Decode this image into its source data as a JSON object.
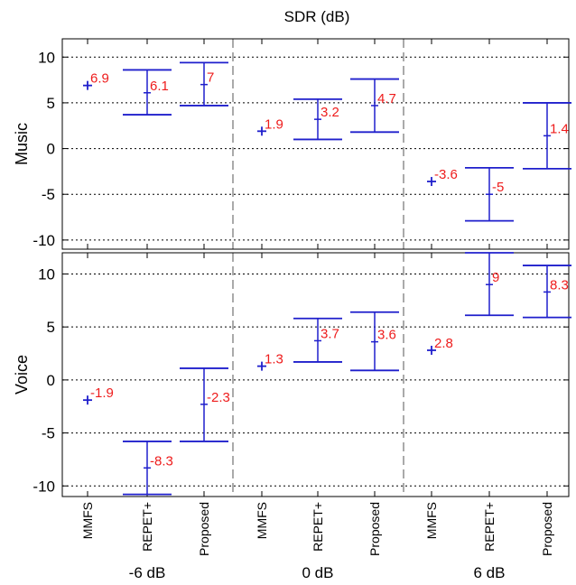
{
  "chart_data": {
    "type": "errorbar",
    "title": "SDR (dB)",
    "groups": [
      "-6 dB",
      "0 dB",
      "6 dB"
    ],
    "methods": [
      "MMFS",
      "REPET+",
      "Proposed"
    ],
    "yticks": [
      -10,
      -5,
      0,
      5,
      10
    ],
    "grid": "horizontal dotted",
    "colors": {
      "marker": "#1f1fcc",
      "label": "#ee1c1c",
      "axis": "#000000"
    },
    "panels": [
      {
        "ylabel": "Music",
        "ylim": [
          -11,
          12
        ],
        "points": [
          {
            "group": "-6 dB",
            "method": "MMFS",
            "mean": 6.9,
            "label": "6.9"
          },
          {
            "group": "-6 dB",
            "method": "REPET+",
            "mean": 6.1,
            "low": 3.7,
            "high": 8.6,
            "label": "6.1"
          },
          {
            "group": "-6 dB",
            "method": "Proposed",
            "mean": 7,
            "low": 4.7,
            "high": 9.4,
            "label": "7"
          },
          {
            "group": "0 dB",
            "method": "MMFS",
            "mean": 1.9,
            "label": "1.9"
          },
          {
            "group": "0 dB",
            "method": "REPET+",
            "mean": 3.2,
            "low": 1.0,
            "high": 5.4,
            "label": "3.2"
          },
          {
            "group": "0 dB",
            "method": "Proposed",
            "mean": 4.7,
            "low": 1.8,
            "high": 7.6,
            "label": "4.7"
          },
          {
            "group": "6 dB",
            "method": "MMFS",
            "mean": -3.6,
            "label": "-3.6"
          },
          {
            "group": "6 dB",
            "method": "REPET+",
            "mean": -5,
            "low": -7.9,
            "high": -2.1,
            "label": "-5"
          },
          {
            "group": "6 dB",
            "method": "Proposed",
            "mean": 1.4,
            "low": -2.2,
            "high": 5.0,
            "label": "1.4"
          }
        ]
      },
      {
        "ylabel": "Voice",
        "ylim": [
          -11,
          12
        ],
        "points": [
          {
            "group": "-6 dB",
            "method": "MMFS",
            "mean": -1.9,
            "label": "-1.9"
          },
          {
            "group": "-6 dB",
            "method": "REPET+",
            "mean": -8.3,
            "low": -10.8,
            "high": -5.8,
            "label": "-8.3"
          },
          {
            "group": "-6 dB",
            "method": "Proposed",
            "mean": -2.3,
            "low": -5.8,
            "high": 1.1,
            "label": "-2.3"
          },
          {
            "group": "0 dB",
            "method": "MMFS",
            "mean": 1.3,
            "label": "1.3"
          },
          {
            "group": "0 dB",
            "method": "REPET+",
            "mean": 3.7,
            "low": 1.7,
            "high": 5.8,
            "label": "3.7"
          },
          {
            "group": "0 dB",
            "method": "Proposed",
            "mean": 3.6,
            "low": 0.9,
            "high": 6.4,
            "label": "3.6"
          },
          {
            "group": "6 dB",
            "method": "MMFS",
            "mean": 2.8,
            "label": "2.8"
          },
          {
            "group": "6 dB",
            "method": "REPET+",
            "mean": 9,
            "low": 6.1,
            "high": 12.0,
            "label": "9"
          },
          {
            "group": "6 dB",
            "method": "Proposed",
            "mean": 8.3,
            "low": 5.9,
            "high": 10.8,
            "label": "8.3"
          }
        ]
      }
    ]
  }
}
